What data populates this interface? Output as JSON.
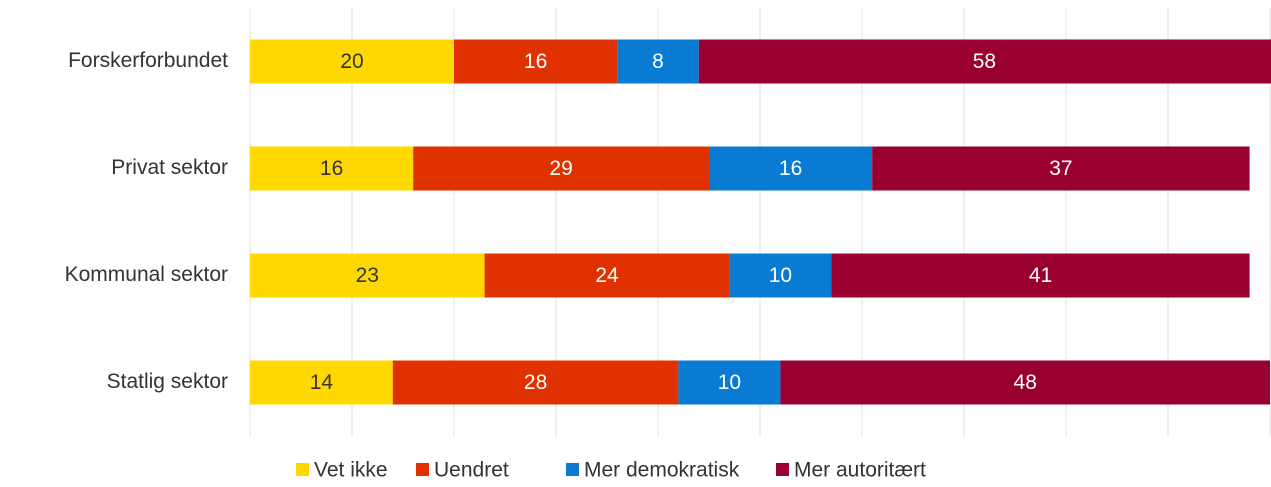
{
  "chart_data": {
    "type": "stacked-barh",
    "categories": [
      "Forskerforbundet",
      "Privat sektor",
      "Kommunal sektor",
      "Statlig sektor"
    ],
    "series": [
      {
        "name": "Vet ikke",
        "color": "#ffd800",
        "values": [
          20,
          16,
          23,
          14
        ]
      },
      {
        "name": "Uendret",
        "color": "#e03100",
        "values": [
          16,
          29,
          24,
          28
        ]
      },
      {
        "name": "Mer demokratisk",
        "color": "#0a7bd2",
        "values": [
          8,
          16,
          10,
          10
        ]
      },
      {
        "name": "Mer autoritært",
        "color": "#990030",
        "values": [
          58,
          37,
          41,
          48
        ]
      }
    ],
    "xlim": [
      0,
      100
    ],
    "xticks": [
      0,
      10,
      20,
      30,
      40,
      50,
      60,
      70,
      80,
      90,
      100
    ],
    "grid": true,
    "legend": "bottom"
  }
}
